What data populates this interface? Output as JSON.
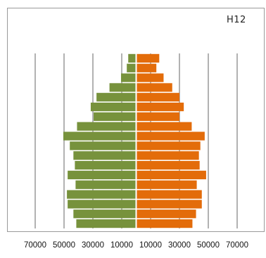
{
  "chart_data": {
    "type": "bar",
    "orientation": "horizontal-pyramid",
    "title": "H12",
    "xlim": [
      -70000,
      70000
    ],
    "x_ticks": [
      -70000,
      -50000,
      -30000,
      -10000,
      10000,
      30000,
      50000,
      70000
    ],
    "x_tick_labels": [
      "70000",
      "50000",
      "30000",
      "10000",
      "10000",
      "30000",
      "50000",
      "70000"
    ],
    "grid": true,
    "colors": {
      "left": "#77923c",
      "right": "#e36c0a",
      "grid": "#666666"
    },
    "series": [
      {
        "side": "left",
        "values": [
          5500,
          6500,
          10500,
          18500,
          27500,
          31500,
          29500,
          41000,
          50500,
          46000,
          43500,
          42500,
          47500,
          42000,
          48000,
          47500,
          43500,
          41500
        ]
      },
      {
        "side": "right",
        "values": [
          16000,
          14000,
          19000,
          25000,
          30000,
          33000,
          30000,
          38500,
          47500,
          44500,
          43500,
          44000,
          48500,
          42000,
          45500,
          45500,
          41500,
          39000
        ]
      }
    ]
  }
}
